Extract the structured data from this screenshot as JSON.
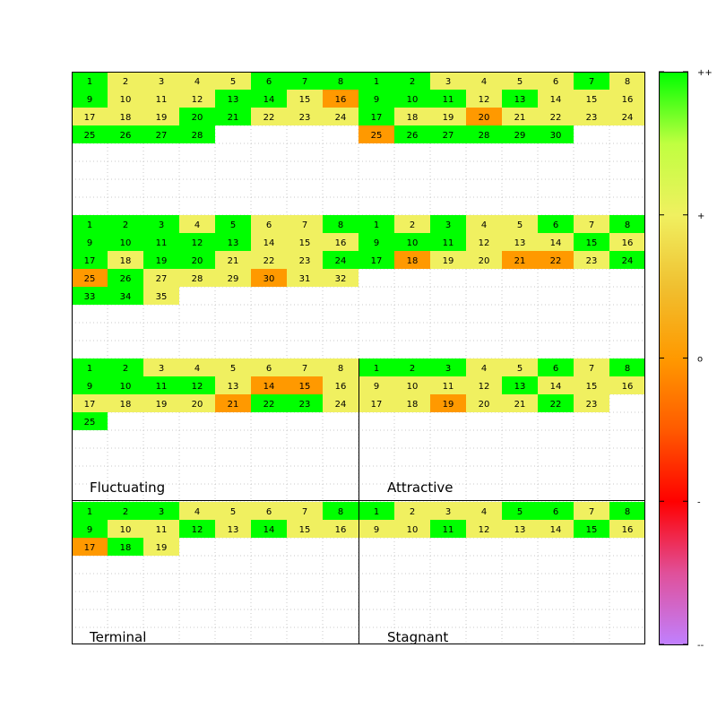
{
  "chart_data": {
    "type": "heatmap",
    "quadrant_labels": [
      "Fluctuating",
      "Attractive",
      "Terminal",
      "Stagnant"
    ],
    "colorbar": {
      "ticks": [
        {
          "value": 2,
          "label": "++"
        },
        {
          "value": 1,
          "label": "+"
        },
        {
          "value": 0,
          "label": "o"
        },
        {
          "value": -1,
          "label": "-"
        },
        {
          "value": -2,
          "label": "--"
        }
      ],
      "range": [
        -2,
        2
      ],
      "colors": [
        {
          "value": -2,
          "color": "#c080ff"
        },
        {
          "value": -1.5,
          "color": "#e0509a"
        },
        {
          "value": -1,
          "color": "#ff0000"
        },
        {
          "value": -0.5,
          "color": "#ff5a00"
        },
        {
          "value": 0,
          "color": "#ff9900"
        },
        {
          "value": 0.5,
          "color": "#f0c030"
        },
        {
          "value": 1,
          "color": "#f0f060"
        },
        {
          "value": 1.5,
          "color": "#c0ff40"
        },
        {
          "value": 2,
          "color": "#00ff00"
        }
      ]
    },
    "panels": [
      {
        "values": [
          2,
          1,
          1,
          1,
          1,
          2,
          2,
          2,
          2,
          1,
          1,
          1,
          2,
          2,
          1,
          0,
          1,
          1,
          1,
          2,
          2,
          1,
          1,
          1,
          2,
          2,
          2,
          2
        ]
      },
      {
        "values": [
          2,
          2,
          1,
          1,
          1,
          1,
          2,
          1,
          2,
          2,
          2,
          1,
          2,
          1,
          1,
          1,
          2,
          1,
          1,
          0,
          1,
          1,
          1,
          1,
          0,
          2,
          2,
          2,
          2,
          2
        ]
      },
      {
        "values": [
          2,
          2,
          2,
          1,
          2,
          1,
          1,
          2,
          2,
          2,
          2,
          2,
          2,
          1,
          1,
          1,
          2,
          1,
          2,
          2,
          1,
          1,
          1,
          2,
          0,
          2,
          1,
          1,
          1,
          0,
          1,
          1,
          2,
          2,
          1
        ]
      },
      {
        "values": [
          2,
          1,
          2,
          1,
          1,
          2,
          1,
          2,
          2,
          2,
          2,
          1,
          1,
          1,
          2,
          1,
          2,
          0,
          1,
          1,
          0,
          0,
          1,
          2
        ]
      },
      {
        "values": [
          2,
          2,
          1,
          1,
          1,
          1,
          1,
          1,
          2,
          2,
          2,
          2,
          1,
          0,
          0,
          1,
          1,
          1,
          1,
          1,
          0,
          2,
          2,
          1,
          2
        ]
      },
      {
        "values": [
          2,
          2,
          2,
          1,
          1,
          2,
          1,
          2,
          1,
          1,
          1,
          1,
          2,
          1,
          1,
          1,
          1,
          1,
          0,
          1,
          1,
          2,
          1
        ]
      },
      {
        "values": [
          2,
          2,
          2,
          1,
          1,
          1,
          1,
          2,
          2,
          1,
          1,
          2,
          1,
          2,
          1,
          1,
          0,
          2,
          1
        ]
      },
      {
        "values": [
          2,
          1,
          1,
          1,
          2,
          2,
          1,
          2,
          1,
          1,
          2,
          1,
          1,
          1,
          2,
          1
        ]
      }
    ]
  }
}
